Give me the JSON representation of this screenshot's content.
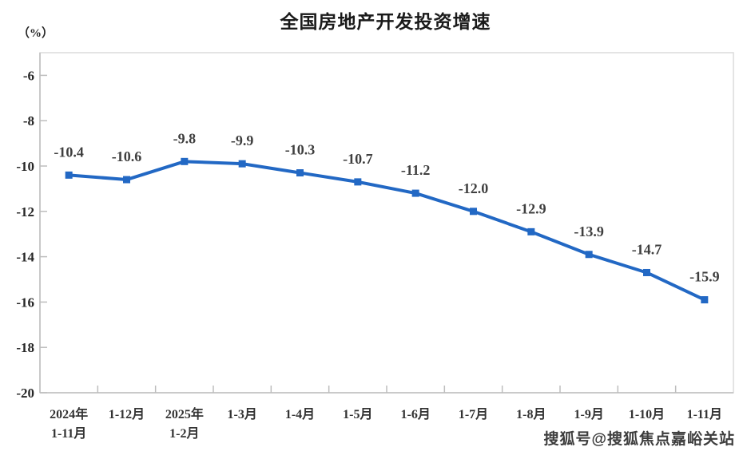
{
  "header": {
    "title": "全国房地产开发投资增速",
    "unit_label": "（%）"
  },
  "watermark": "搜狐号@搜狐焦点嘉峪关站",
  "chart_data": {
    "type": "line",
    "title": "全国房地产开发投资增速",
    "ylabel": "（%）",
    "xlabel": "",
    "categories": [
      [
        "2024年",
        "1-11月"
      ],
      [
        "1-12月"
      ],
      [
        "2025年",
        "1-2月"
      ],
      [
        "1-3月"
      ],
      [
        "1-4月"
      ],
      [
        "1-5月"
      ],
      [
        "1-6月"
      ],
      [
        "1-7月"
      ],
      [
        "1-8月"
      ],
      [
        "1-9月"
      ],
      [
        "1-10月"
      ],
      [
        "1-11月"
      ]
    ],
    "values": [
      -10.4,
      -10.6,
      -9.8,
      -9.9,
      -10.3,
      -10.7,
      -11.2,
      -12.0,
      -12.9,
      -13.9,
      -14.7,
      -15.9
    ],
    "data_labels": [
      "-10.4",
      "-10.6",
      "-9.8",
      "-9.9",
      "-10.3",
      "-10.7",
      "-11.2",
      "-12.0",
      "-12.9",
      "-13.9",
      "-14.7",
      "-15.9"
    ],
    "ylim": [
      -20,
      -5
    ],
    "yticks": [
      -6,
      -8,
      -10,
      -12,
      -14,
      -16,
      -18,
      -20
    ],
    "grid": false,
    "legend": "none",
    "line_color": "#2268C4",
    "marker": "square",
    "axis_color": "#bdbdbd",
    "border_color": "#dcdcdc",
    "label_color": "#3f3f3f"
  }
}
